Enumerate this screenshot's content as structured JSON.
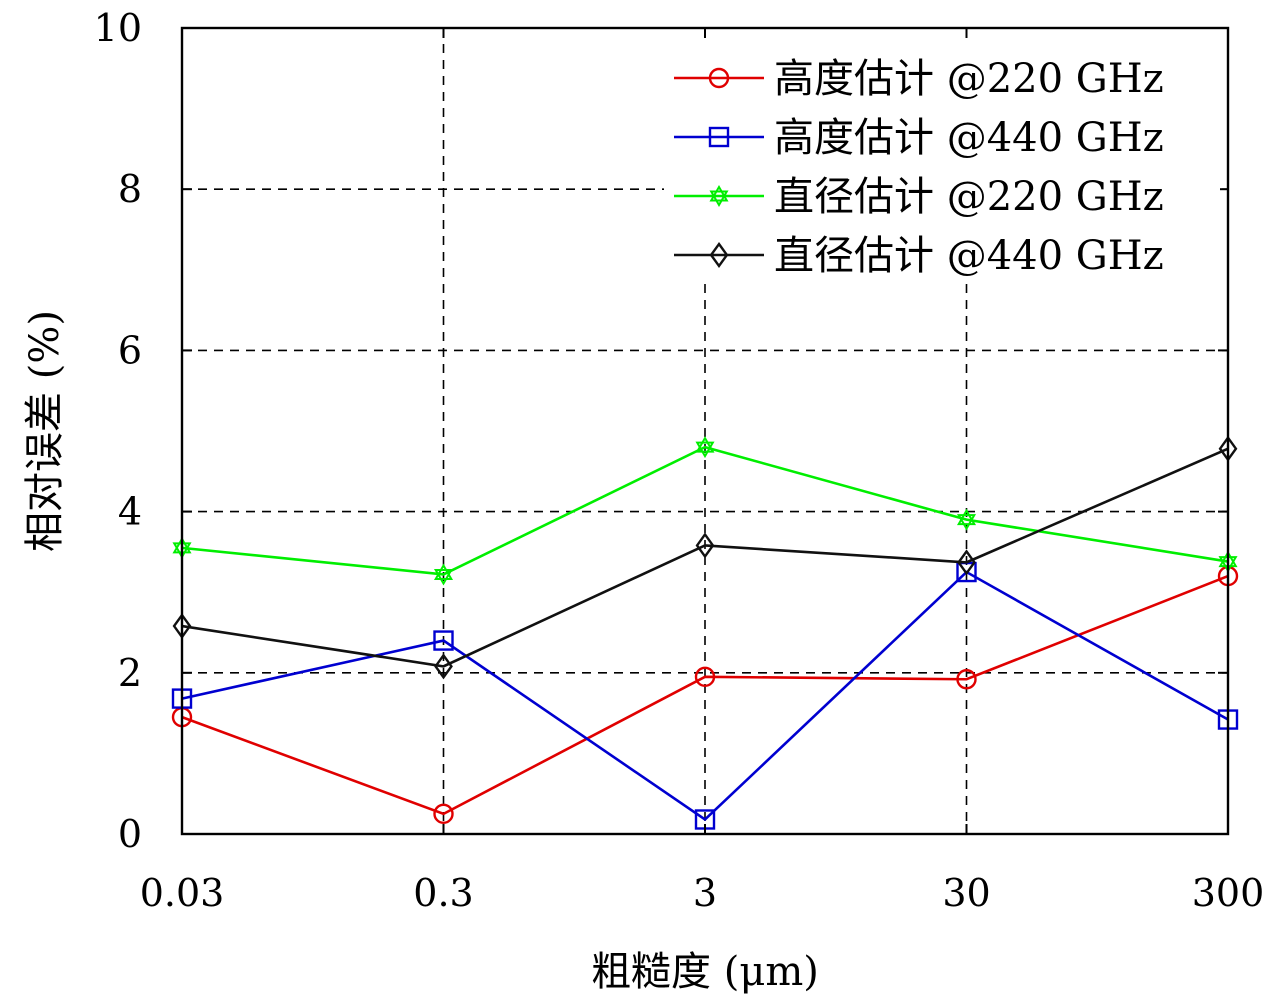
{
  "chart_data": {
    "type": "line",
    "categories": [
      "0.03",
      "0.3",
      "3",
      "30",
      "300"
    ],
    "xlabel": "粗糙度 (μm)",
    "ylabel": "相对误差 (%)",
    "ylim": [
      0,
      10
    ],
    "yticks": [
      "0",
      "2",
      "4",
      "6",
      "8",
      "10"
    ],
    "grid": true,
    "legend_position": "top-right",
    "series": [
      {
        "name": "高度估计 @220 GHz",
        "color": "#e00000",
        "marker": "circle",
        "values": [
          1.45,
          0.25,
          1.95,
          1.92,
          3.2
        ]
      },
      {
        "name": "高度估计 @440 GHz",
        "color": "#0000d0",
        "marker": "square",
        "values": [
          1.68,
          2.4,
          0.18,
          3.25,
          1.42
        ]
      },
      {
        "name": "直径估计 @220 GHz",
        "color": "#00ee00",
        "marker": "hexagram",
        "values": [
          3.55,
          3.22,
          4.8,
          3.9,
          3.38
        ]
      },
      {
        "name": "直径估计 @440 GHz",
        "color": "#111111",
        "marker": "diamond",
        "values": [
          2.58,
          2.08,
          3.58,
          3.37,
          4.78
        ]
      }
    ]
  }
}
